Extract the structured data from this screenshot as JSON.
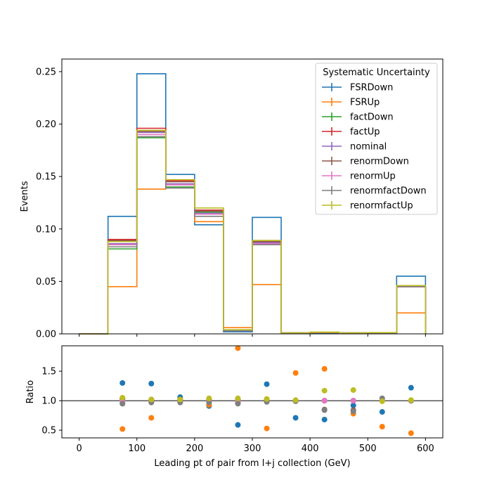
{
  "chart_data": [
    {
      "type": "step",
      "ylabel": "Events",
      "xlim": [
        -30,
        630
      ],
      "ylim": [
        0,
        0.262
      ],
      "yticks": [
        "0.00",
        "0.05",
        "0.10",
        "0.15",
        "0.20",
        "0.25"
      ],
      "yticks_values": [
        0,
        0.05,
        0.1,
        0.15,
        0.2,
        0.25
      ],
      "bin_edges": [
        0,
        50,
        100,
        150,
        200,
        250,
        300,
        350,
        400,
        450,
        500,
        550,
        600
      ],
      "legend": {
        "title": "Systematic Uncertainty",
        "placement": "top-right"
      },
      "series": [
        {
          "name": "FSRDown",
          "color": "#1f77b4",
          "values": [
            0.0,
            0.112,
            0.248,
            0.152,
            0.104,
            0.002,
            0.111,
            0.0006,
            0.0009,
            0.0007,
            0.0005,
            0.055
          ]
        },
        {
          "name": "FSRUp",
          "color": "#ff7f0e",
          "values": [
            0.0,
            0.045,
            0.138,
            0.146,
            0.107,
            0.006,
            0.047,
            0.0008,
            0.0012,
            0.0006,
            0.0003,
            0.02
          ]
        },
        {
          "name": "factDown",
          "color": "#2ca02c",
          "values": [
            0.0,
            0.081,
            0.187,
            0.14,
            0.116,
            0.003,
            0.086,
            0.001,
            0.0015,
            0.0009,
            0.0007,
            0.045
          ]
        },
        {
          "name": "factUp",
          "color": "#d62728",
          "values": [
            0.0,
            0.09,
            0.196,
            0.146,
            0.118,
            0.003,
            0.089,
            0.001,
            0.0015,
            0.0009,
            0.0007,
            0.045
          ]
        },
        {
          "name": "nominal",
          "color": "#9467bd",
          "values": [
            0.0,
            0.086,
            0.192,
            0.143,
            0.115,
            0.003,
            0.087,
            0.001,
            0.0015,
            0.0009,
            0.0007,
            0.045
          ]
        },
        {
          "name": "renormDown",
          "color": "#8c564b",
          "values": [
            0.0,
            0.089,
            0.193,
            0.145,
            0.117,
            0.003,
            0.088,
            0.001,
            0.0015,
            0.0009,
            0.0007,
            0.045
          ]
        },
        {
          "name": "renormUp",
          "color": "#e377c2",
          "values": [
            0.0,
            0.085,
            0.19,
            0.142,
            0.114,
            0.003,
            0.086,
            0.001,
            0.0015,
            0.0009,
            0.0007,
            0.045
          ]
        },
        {
          "name": "renormfactDown",
          "color": "#7f7f7f",
          "values": [
            0.0,
            0.083,
            0.188,
            0.139,
            0.112,
            0.003,
            0.085,
            0.001,
            0.0015,
            0.0009,
            0.0007,
            0.045
          ]
        },
        {
          "name": "renormfactUp",
          "color": "#bcbd22",
          "values": [
            0.0,
            0.088,
            0.194,
            0.147,
            0.12,
            0.004,
            0.089,
            0.001,
            0.0017,
            0.001,
            0.0012,
            0.046
          ]
        }
      ]
    },
    {
      "type": "scatter",
      "xlabel": "Leading pt of pair from l+j collection (GeV)",
      "ylabel": "Ratio",
      "xlim": [
        -30,
        630
      ],
      "ylim": [
        0.37,
        1.93
      ],
      "xticks": [
        "0",
        "100",
        "200",
        "300",
        "400",
        "500",
        "600"
      ],
      "xticks_values": [
        0,
        100,
        200,
        300,
        400,
        500,
        600
      ],
      "yticks": [
        "0.5",
        "1.0",
        "1.5"
      ],
      "yticks_values": [
        0.5,
        1.0,
        1.5
      ],
      "reference_line": 1.0,
      "x": [
        75,
        125,
        175,
        225,
        275,
        325,
        375,
        425,
        475,
        525,
        575
      ],
      "series": [
        {
          "name": "FSRDown",
          "color": "#1f77b4",
          "values": [
            1.3,
            1.29,
            1.06,
            0.91,
            0.59,
            1.28,
            0.71,
            0.68,
            0.92,
            0.81,
            1.22
          ]
        },
        {
          "name": "FSRUp",
          "color": "#ff7f0e",
          "values": [
            0.52,
            0.71,
            1.02,
            0.93,
            1.89,
            0.53,
            1.47,
            1.54,
            0.78,
            0.56,
            0.45
          ]
        },
        {
          "name": "factDown",
          "color": "#2ca02c",
          "values": [
            0.95,
            0.98,
            0.98,
            1.0,
            0.97,
            0.99,
            1.0,
            1.0,
            1.0,
            1.0,
            1.0
          ]
        },
        {
          "name": "factUp",
          "color": "#d62728",
          "values": [
            1.04,
            1.02,
            1.02,
            1.02,
            1.02,
            1.02,
            1.0,
            1.0,
            1.0,
            1.0,
            1.0
          ]
        },
        {
          "name": "nominal",
          "color": "#9467bd",
          "values": [
            1.0,
            1.0,
            1.0,
            1.0,
            1.0,
            1.0,
            1.0,
            1.0,
            1.0,
            1.0,
            1.0
          ]
        },
        {
          "name": "renormDown",
          "color": "#8c564b",
          "values": [
            1.03,
            1.01,
            1.01,
            1.01,
            1.0,
            1.01,
            1.0,
            0.85,
            0.84,
            1.0,
            1.0
          ]
        },
        {
          "name": "renormUp",
          "color": "#e377c2",
          "values": [
            0.99,
            0.99,
            0.99,
            0.99,
            0.99,
            0.99,
            1.0,
            1.0,
            1.0,
            1.0,
            1.0
          ]
        },
        {
          "name": "renormfactDown",
          "color": "#7f7f7f",
          "values": [
            0.95,
            0.97,
            0.97,
            0.97,
            0.95,
            0.98,
            0.99,
            0.84,
            0.82,
            1.04,
            1.0
          ]
        },
        {
          "name": "renormfactUp",
          "color": "#bcbd22",
          "values": [
            1.05,
            1.02,
            1.02,
            1.04,
            1.04,
            1.03,
            1.01,
            1.17,
            1.18,
            0.99,
            1.01
          ]
        }
      ]
    }
  ]
}
